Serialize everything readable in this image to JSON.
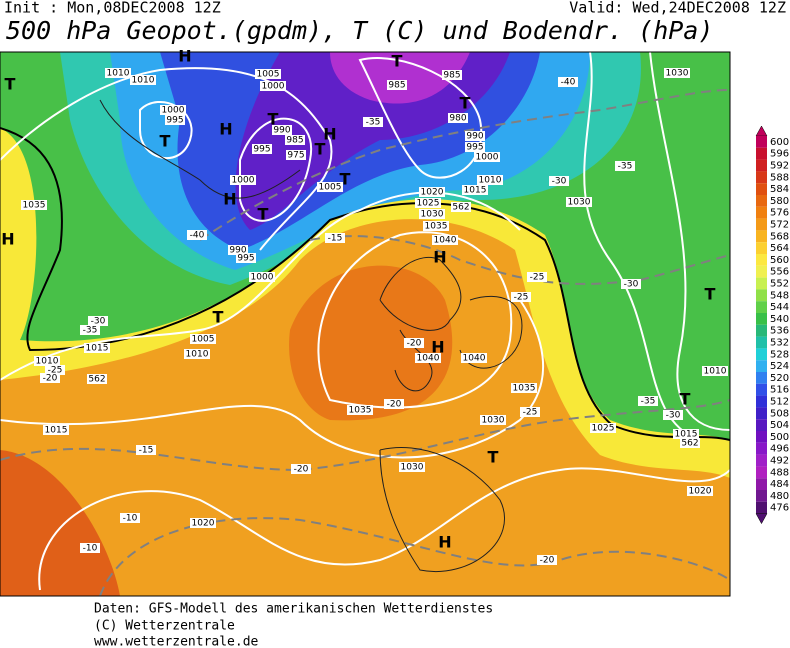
{
  "header": {
    "init": "Init : Mon,08DEC2008 12Z",
    "valid": "Valid: Wed,24DEC2008 12Z",
    "title": "500 hPa Geopot.(gpdm), T (C) und Bodendr. (hPa)"
  },
  "map": {
    "pressure_systems": [
      "H",
      "T",
      "T",
      "H",
      "T",
      "H",
      "T",
      "T",
      "T",
      "T",
      "H",
      "T",
      "H",
      "T",
      "H",
      "H",
      "T",
      "H",
      "T",
      "T"
    ],
    "contour_labels": [
      "1010",
      "1010",
      "1005",
      "1000",
      "985",
      "985",
      "980",
      "990",
      "995",
      "1000",
      "1010",
      "1015",
      "1000",
      "995",
      "990",
      "995",
      "985",
      "975",
      "1000",
      "990",
      "995",
      "1000",
      "1005",
      "1020",
      "1025",
      "1030",
      "1035",
      "1040",
      "1040",
      "1040",
      "1035",
      "1035",
      "1030",
      "1030",
      "1025",
      "1020",
      "1020",
      "1015",
      "1015",
      "1015",
      "1010",
      "1010",
      "1010",
      "1005",
      "1035",
      "1030",
      "1030",
      "-40",
      "-35",
      "-35",
      "-30",
      "-40",
      "-35",
      "-30",
      "-15",
      "-20",
      "-20",
      "-25",
      "-25",
      "-30",
      "-35",
      "-30",
      "-25",
      "-20",
      "-15",
      "-10",
      "-10",
      "-20",
      "-25",
      "-20",
      "562",
      "562",
      "562"
    ]
  },
  "legend": {
    "values": [
      600,
      596,
      592,
      588,
      584,
      580,
      576,
      572,
      568,
      564,
      560,
      556,
      552,
      548,
      544,
      540,
      536,
      532,
      528,
      524,
      520,
      516,
      512,
      508,
      504,
      500,
      496,
      492,
      488,
      484,
      480,
      476
    ],
    "colors": [
      "#c0005a",
      "#c8102e",
      "#d02020",
      "#d83818",
      "#e05010",
      "#e86810",
      "#f08010",
      "#f49a18",
      "#f8b420",
      "#fcd030",
      "#fce840",
      "#f0f050",
      "#c8f050",
      "#90e048",
      "#60d048",
      "#38c048",
      "#28b878",
      "#20c0a8",
      "#20d0d8",
      "#30b0f0",
      "#3080f0",
      "#3050e8",
      "#3030d8",
      "#4020c8",
      "#5818c0",
      "#7010c0",
      "#8818c8",
      "#a020c8",
      "#b020c0",
      "#9018a8",
      "#701890",
      "#501070"
    ]
  },
  "footer": {
    "line1": "Daten: GFS-Modell des amerikanischen Wetterdienstes",
    "line2": "(C) Wetterzentrale",
    "line3": "www.wetterzentrale.de"
  }
}
